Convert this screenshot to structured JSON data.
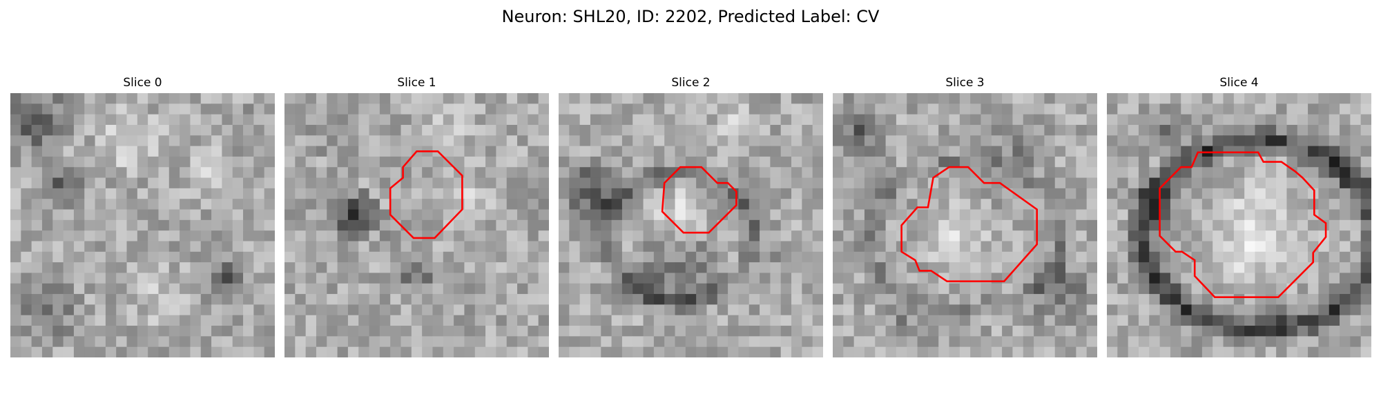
{
  "figure": {
    "title": "Neuron: SHL20, ID: 2202, Predicted Label: CV",
    "contour_color": "#ff0000",
    "panels": [
      {
        "label": "Slice 0",
        "has_contour": false
      },
      {
        "label": "Slice 1",
        "has_contour": true
      },
      {
        "label": "Slice 2",
        "has_contour": true
      },
      {
        "label": "Slice 3",
        "has_contour": true
      },
      {
        "label": "Slice 4",
        "has_contour": true
      }
    ]
  }
}
